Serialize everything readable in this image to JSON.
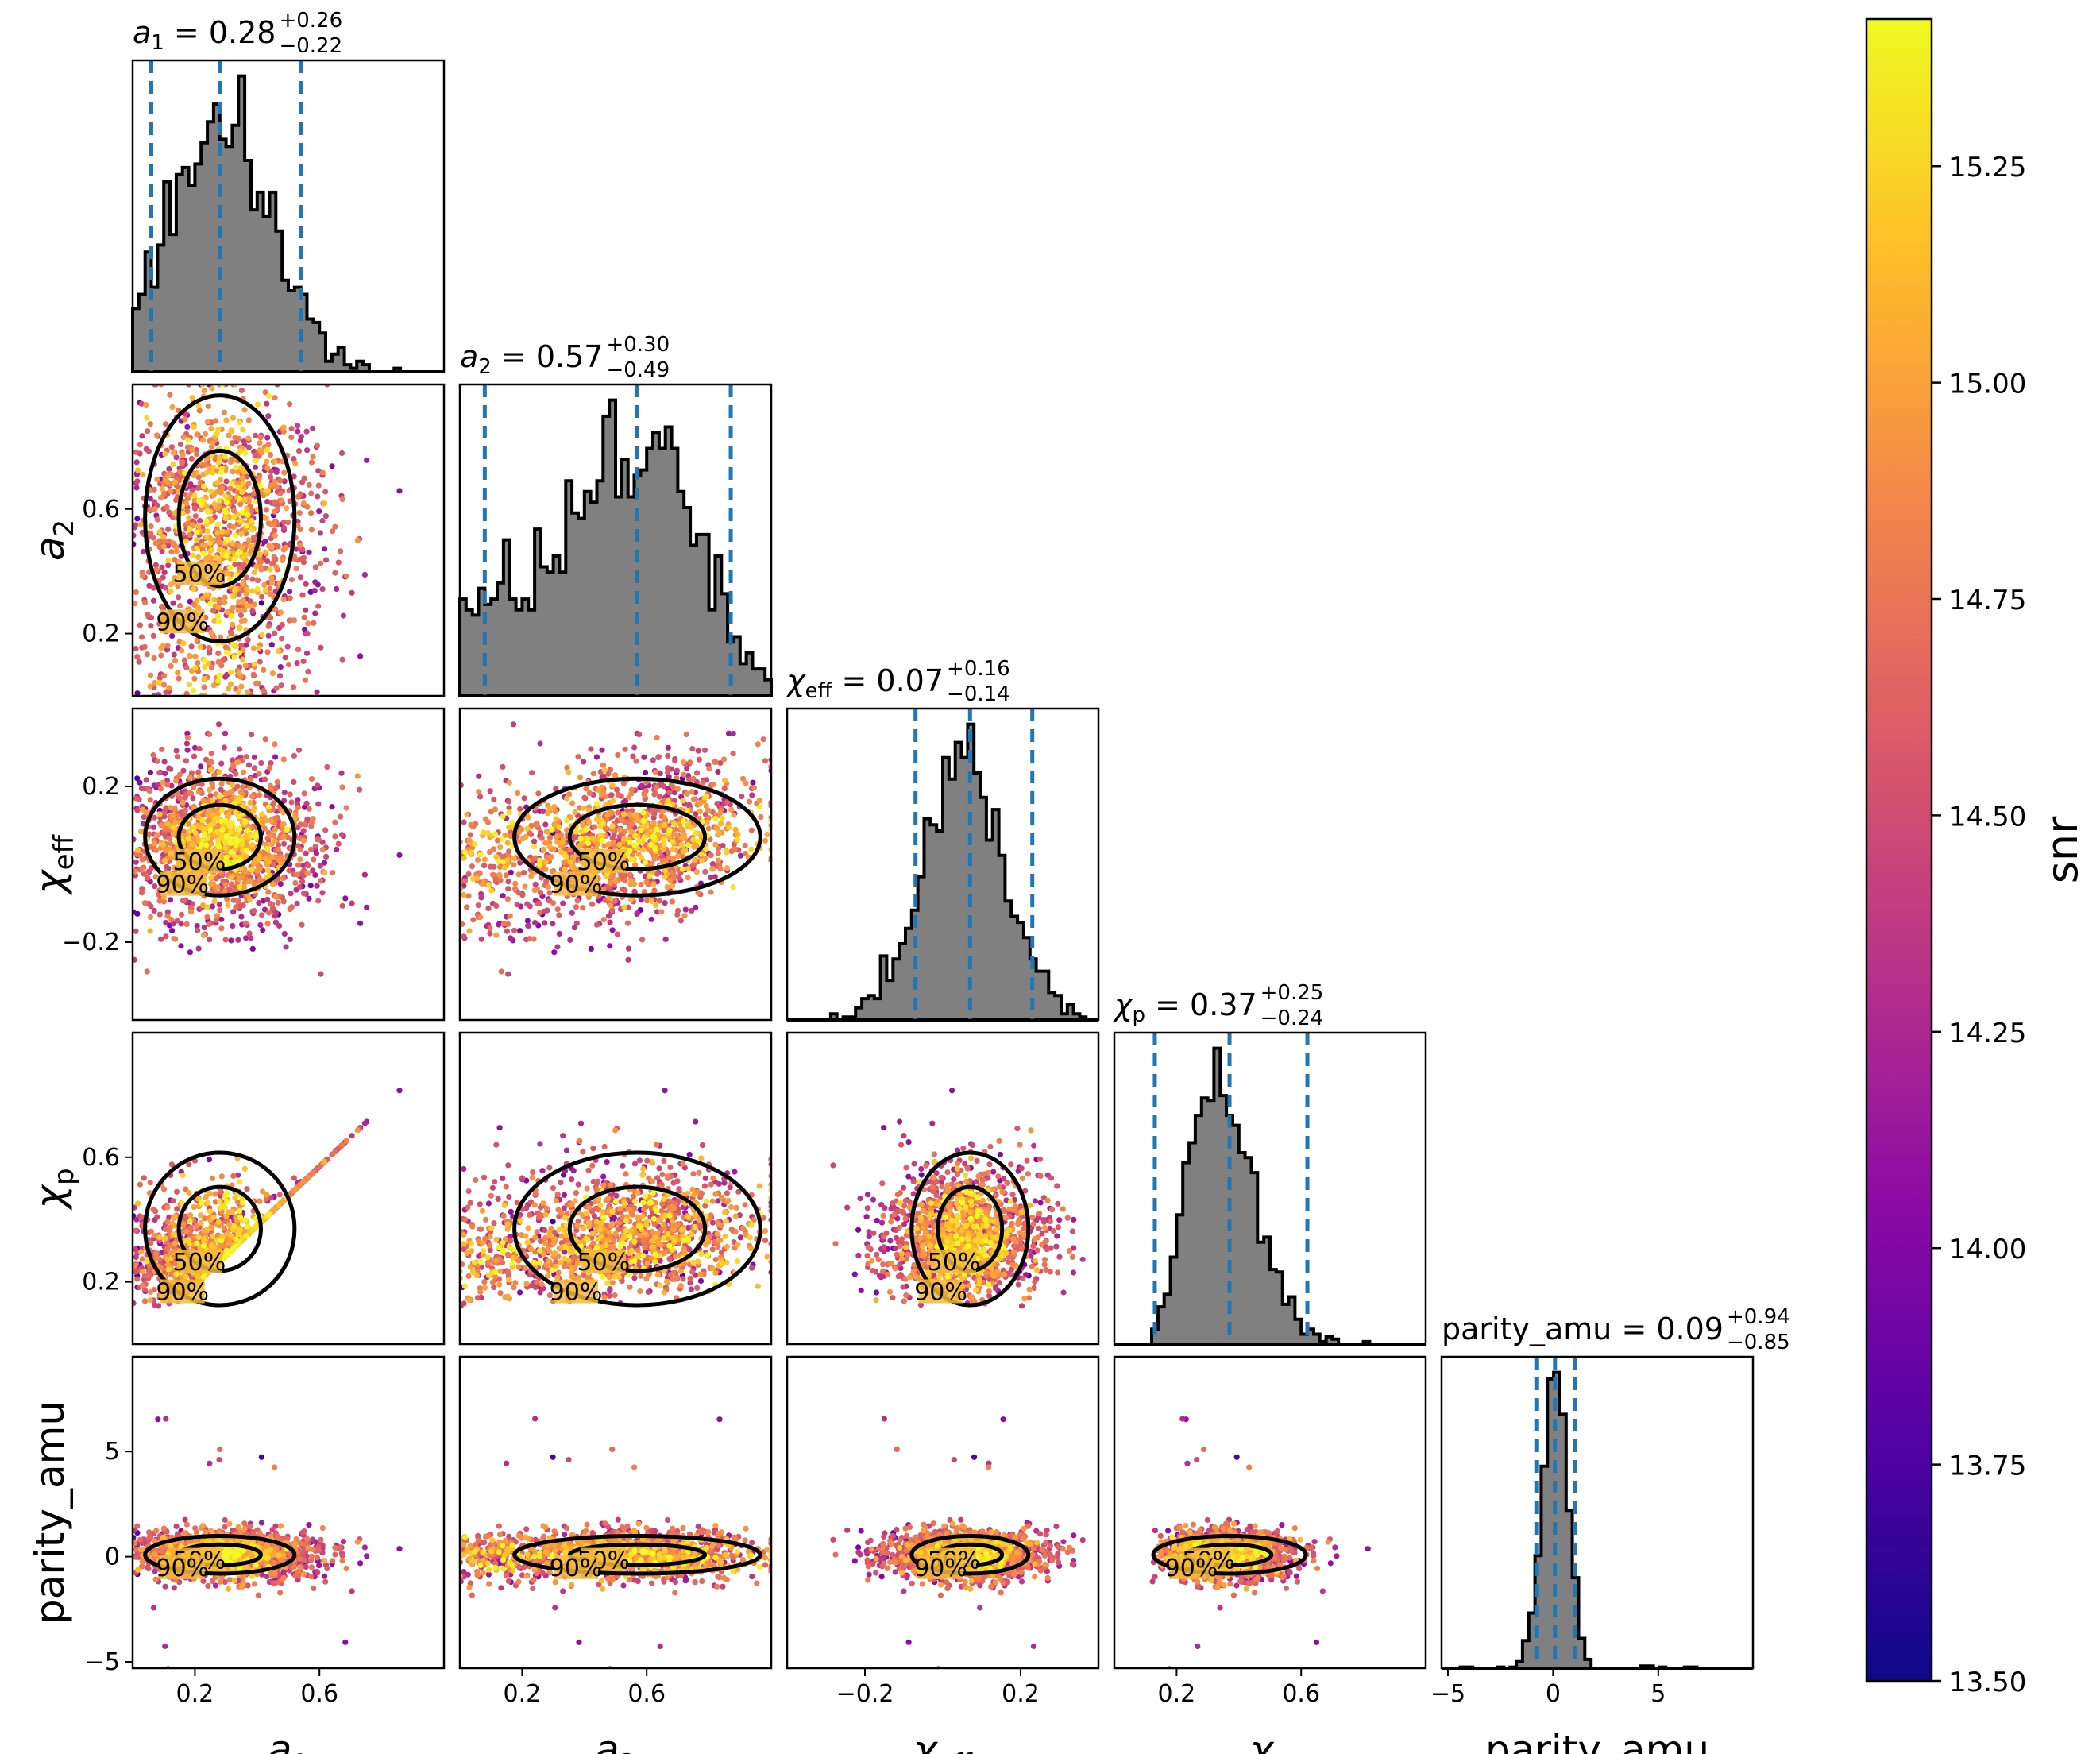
{
  "chart_data": {
    "type": "scatter",
    "layout": "corner-plot",
    "parameters": [
      {
        "key": "a1",
        "name": "a",
        "sub": "1",
        "italic": true,
        "range": [
          0.0,
          1.0
        ],
        "ticks": [
          0.2,
          0.6
        ],
        "ticklabels": [
          "0.2",
          "0.6"
        ],
        "median": 0.28,
        "plus": "+0.26",
        "minus": "−0.22",
        "median_label": "0.28",
        "quantiles": [
          0.06,
          0.28,
          0.54
        ]
      },
      {
        "key": "a2",
        "name": "a",
        "sub": "2",
        "italic": true,
        "range": [
          0.0,
          1.0
        ],
        "ticks": [
          0.2,
          0.6
        ],
        "ticklabels": [
          "0.2",
          "0.6"
        ],
        "median": 0.57,
        "plus": "+0.30",
        "minus": "−0.49",
        "median_label": "0.57",
        "quantiles": [
          0.08,
          0.57,
          0.87
        ]
      },
      {
        "key": "chi_eff",
        "name": "χ",
        "sub": "eff",
        "italic": true,
        "range": [
          -0.4,
          0.4
        ],
        "ticks": [
          -0.2,
          0.2
        ],
        "ticklabels": [
          "−0.2",
          "0.2"
        ],
        "median": 0.07,
        "plus": "+0.16",
        "minus": "−0.14",
        "median_label": "0.07",
        "quantiles": [
          -0.07,
          0.07,
          0.23
        ]
      },
      {
        "key": "chi_p",
        "name": "χ",
        "sub": "p",
        "italic": true,
        "range": [
          0.0,
          1.0
        ],
        "ticks": [
          0.2,
          0.6
        ],
        "ticklabels": [
          "0.2",
          "0.6"
        ],
        "median": 0.37,
        "plus": "+0.25",
        "minus": "−0.24",
        "median_label": "0.37",
        "quantiles": [
          0.13,
          0.37,
          0.62
        ]
      },
      {
        "key": "parity_amu",
        "name": "parity_amu",
        "sub": "",
        "italic": false,
        "range": [
          -5.3,
          9.5
        ],
        "ticks": [
          -5,
          0,
          5
        ],
        "ticklabels": [
          "−5",
          "0",
          "5"
        ],
        "median": 0.09,
        "plus": "+0.94",
        "minus": "−0.85",
        "median_label": "0.09",
        "quantiles": [
          -0.76,
          0.09,
          1.03
        ]
      }
    ],
    "parity_ytick_labels": [
      "−5",
      "0",
      "5"
    ],
    "colorbar": {
      "label": "snr",
      "range": [
        13.5,
        15.42
      ],
      "ticks": [
        13.5,
        13.75,
        14.0,
        14.25,
        14.5,
        14.75,
        15.0,
        15.25
      ],
      "ticklabels": [
        "13.50",
        "13.75",
        "14.00",
        "14.25",
        "14.50",
        "14.75",
        "15.00",
        "15.25"
      ],
      "colormap": "plasma"
    },
    "contour_levels": [
      "50%",
      "90%"
    ],
    "colors": {
      "hist_fill": "#808080",
      "hist_edge": "#000000",
      "quantile_line": "#1f77b4",
      "contour": "#000000"
    }
  }
}
